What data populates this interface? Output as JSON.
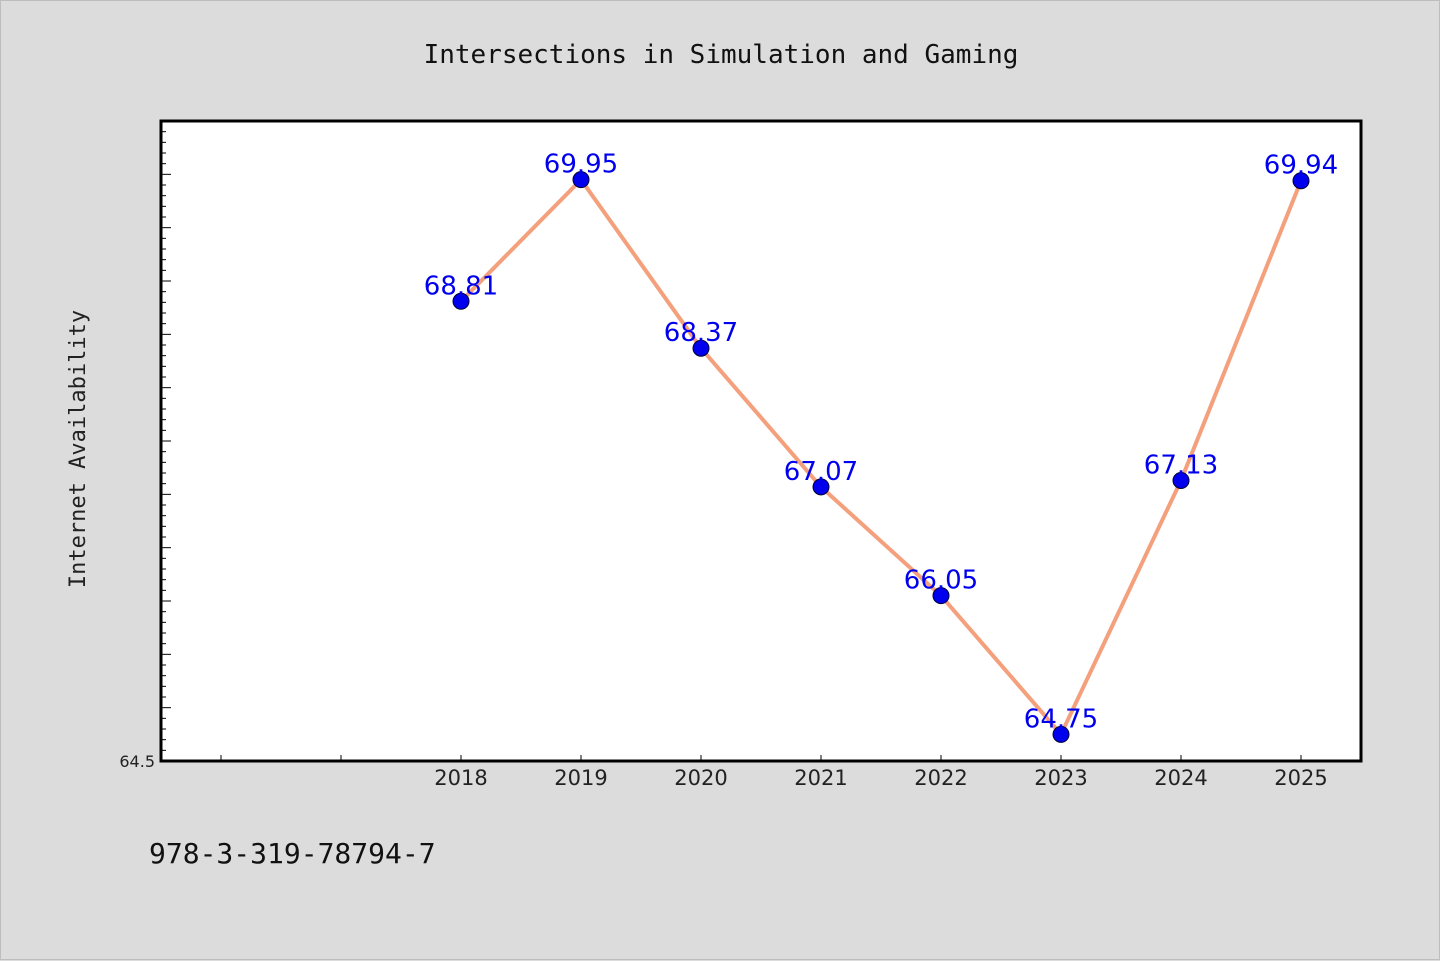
{
  "chart_data": {
    "type": "line",
    "title": "Intersections in Simulation and Gaming",
    "xlabel": "",
    "ylabel": "Internet Availability",
    "x": [
      2018,
      2019,
      2020,
      2021,
      2022,
      2023,
      2024,
      2025
    ],
    "x_ticklabels": [
      "2018",
      "2019",
      "2020",
      "2021",
      "2022",
      "2023",
      "2024",
      "2025"
    ],
    "xlim": [
      2015.5,
      2025.5
    ],
    "ylim": [
      64.5,
      70.5
    ],
    "y_ticklabels": [
      "64.5"
    ],
    "series": [
      {
        "values": [
          68.81,
          69.95,
          68.37,
          67.07,
          66.05,
          64.75,
          67.13,
          69.94
        ],
        "data_labels": [
          "68.81",
          "69.95",
          "68.37",
          "67.07",
          "66.05",
          "64.75",
          "67.13",
          "69.94"
        ],
        "line_color": "#f4a07c",
        "marker_color": "#0000ee",
        "label_color": "#0000ee"
      }
    ],
    "grid": false,
    "legend": "none",
    "background": "#ffffff",
    "frame_color": "#000000"
  },
  "footnote": "978-3-319-78794-7"
}
